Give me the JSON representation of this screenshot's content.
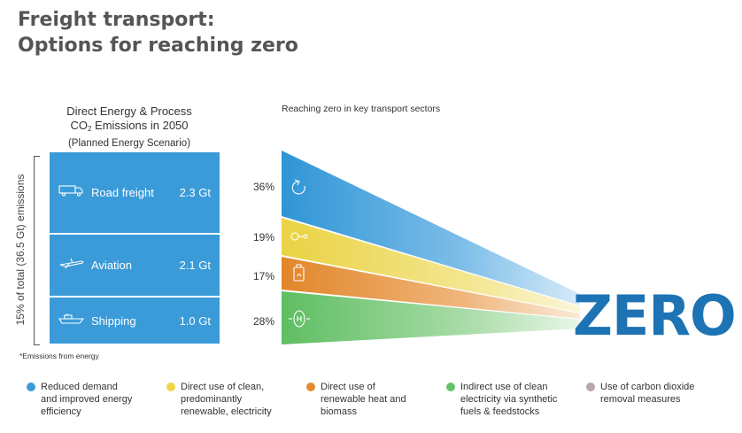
{
  "title": {
    "line1": "Freight transport:",
    "line2": "Options for reaching zero"
  },
  "left_panel": {
    "heading_line1": "Direct Energy & Process",
    "heading_co": "CO",
    "heading_sub": "2",
    "heading_line2_rest": " Emissions in 2050",
    "heading_line3": "(Planned Energy Scenario)",
    "side_label": "15% of total (36.5 Gt) emissions",
    "sectors": [
      {
        "name": "Road freight",
        "value": "2.3 Gt",
        "icon": "truck-icon"
      },
      {
        "name": "Aviation",
        "value": "2.1 Gt",
        "icon": "airplane-icon"
      },
      {
        "name": "Shipping",
        "value": "1.0 Gt",
        "icon": "ship-icon"
      }
    ],
    "footnote": "*Emissions from energy"
  },
  "right_panel": {
    "heading": "Reaching zero in key transport sectors",
    "bands": [
      {
        "pct": "36%",
        "share": 36,
        "color": "#3a9bd8",
        "icon": "reduce-cycle-icon"
      },
      {
        "pct": "19%",
        "share": 19,
        "color": "#eed64a",
        "icon": "electric-plug-icon"
      },
      {
        "pct": "17%",
        "share": 17,
        "color": "#e58a2e",
        "icon": "biofuel-icon"
      },
      {
        "pct": "28%",
        "share": 28,
        "color": "#66c26b",
        "icon": "hydrogen-icon"
      }
    ],
    "zero_label": "ZERO"
  },
  "legend": [
    {
      "color": "#3a9bd8",
      "lines": [
        "Reduced demand",
        "and improved energy",
        "efficiency"
      ]
    },
    {
      "color": "#eed64a",
      "lines": [
        "Direct use of clean,",
        "predominantly",
        "renewable, electricity"
      ]
    },
    {
      "color": "#e58a2e",
      "lines": [
        "Direct use of",
        "renewable heat and",
        "biomass"
      ]
    },
    {
      "color": "#66c26b",
      "lines": [
        "Indirect use of clean",
        "electricity via synthetic",
        "fuels & feedstocks"
      ]
    },
    {
      "color": "#b9a7a9",
      "lines": [
        "Use of carbon dioxide",
        "removal measures"
      ]
    }
  ]
}
